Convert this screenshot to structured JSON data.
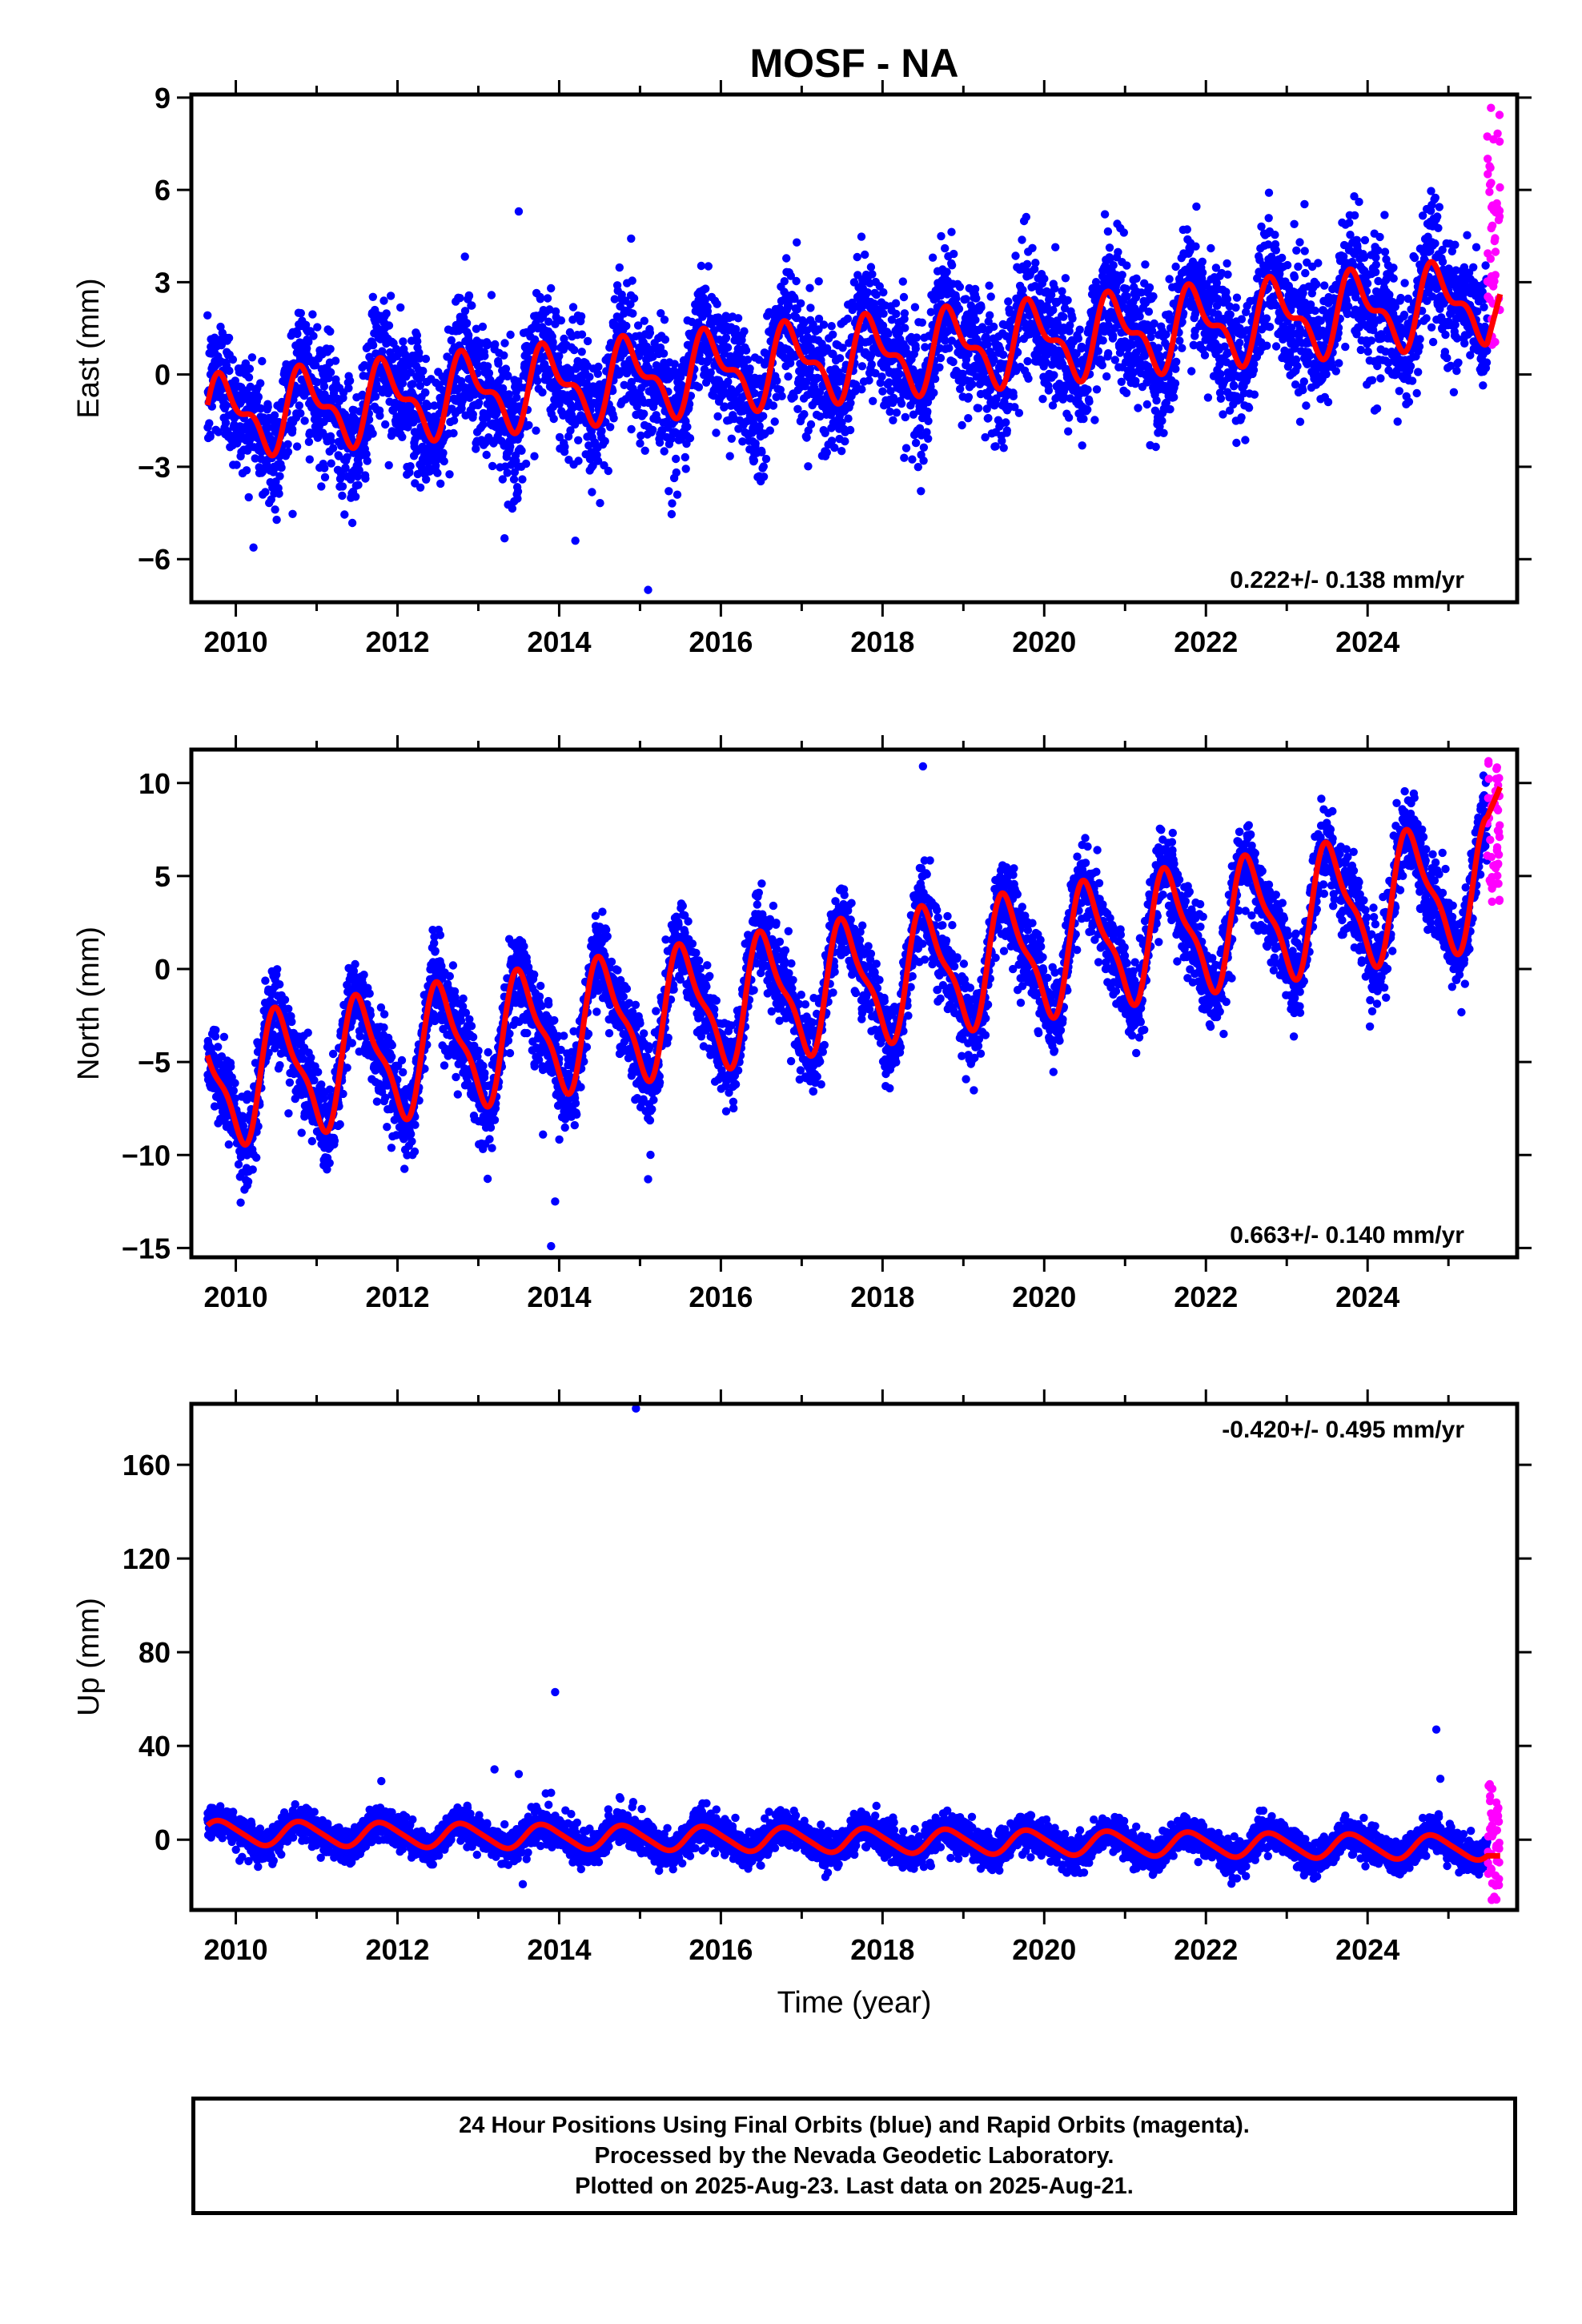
{
  "chart_data": [
    {
      "type": "scatter",
      "title": "MOSF - NA",
      "ylabel": "East (mm)",
      "xlabel": "",
      "xlim": [
        2009.45,
        2025.85
      ],
      "ylim": [
        -7.4,
        9.1
      ],
      "xticks": [
        2010,
        2012,
        2014,
        2016,
        2018,
        2020,
        2022,
        2024
      ],
      "yticks": [
        -6,
        -3,
        0,
        3,
        6,
        9
      ],
      "rate_label": "0.222+/- 0.138 mm/yr",
      "rate_position": "bottom-right",
      "series": [
        {
          "orbit": "final",
          "color": "#0000ff",
          "start": 2009.65,
          "end": 2025.48,
          "trend_start": -1.4,
          "trend_end": 2.4,
          "annual_amp": 1.1,
          "annual_phase": 2009.62,
          "semiannual_amp": 0.55,
          "noise_sd": 1.05,
          "num_points": 5400
        },
        {
          "orbit": "rapid",
          "color": "#ff00ff",
          "start": 2025.48,
          "end": 2025.64,
          "y_range": [
            0.5,
            8.7
          ],
          "num_points": 45
        }
      ],
      "model_curve": {
        "color": "#ff0000",
        "description": "fitted trend + seasonal model"
      },
      "outliers": [
        [
          2013.5,
          5.3
        ],
        [
          2015.1,
          -7.0
        ],
        [
          2014.2,
          -5.4
        ]
      ]
    },
    {
      "type": "scatter",
      "ylabel": "North (mm)",
      "xlabel": "",
      "xlim": [
        2009.45,
        2025.85
      ],
      "ylim": [
        -15.5,
        11.8
      ],
      "xticks": [
        2010,
        2012,
        2014,
        2016,
        2018,
        2020,
        2022,
        2024
      ],
      "yticks": [
        -15,
        -10,
        -5,
        0,
        5,
        10
      ],
      "rate_label": "0.663+/- 0.140 mm/yr",
      "rate_position": "bottom-right",
      "series": [
        {
          "orbit": "final",
          "color": "#0000ff",
          "start": 2009.65,
          "end": 2025.48,
          "trend_start": -6.2,
          "trend_end": 4.6,
          "annual_amp": 3.1,
          "annual_phase": 2009.3,
          "semiannual_amp": 1.0,
          "noise_sd": 1.1,
          "num_points": 5400
        },
        {
          "orbit": "rapid",
          "color": "#ff00ff",
          "start": 2025.48,
          "end": 2025.64,
          "y_range": [
            3.5,
            11.2
          ],
          "num_points": 45
        }
      ],
      "model_curve": {
        "color": "#ff0000",
        "description": "fitted trend + seasonal model"
      },
      "outliers": [
        [
          2013.9,
          -14.9
        ],
        [
          2013.95,
          -12.5
        ],
        [
          2015.1,
          -11.3
        ],
        [
          2013.8,
          -8.9
        ],
        [
          2018.5,
          10.9
        ]
      ]
    },
    {
      "type": "scatter",
      "ylabel": "Up (mm)",
      "xlabel": "Time (year)",
      "xlim": [
        2009.45,
        2025.85
      ],
      "ylim": [
        -30,
        186
      ],
      "xticks": [
        2010,
        2012,
        2014,
        2016,
        2018,
        2020,
        2022,
        2024
      ],
      "yticks": [
        0,
        40,
        80,
        120,
        160
      ],
      "rate_label": "-0.420+/- 0.495 mm/yr",
      "rate_position": "top-right",
      "series": [
        {
          "orbit": "final",
          "color": "#0000ff",
          "start": 2009.65,
          "end": 2025.48,
          "trend_start": 3.0,
          "trend_end": -3.5,
          "annual_amp": 5.0,
          "annual_phase": 2009.57,
          "semiannual_amp": 0.8,
          "noise_sd": 3.6,
          "num_points": 5400
        },
        {
          "orbit": "rapid",
          "color": "#ff00ff",
          "start": 2025.48,
          "end": 2025.64,
          "y_range": [
            -27,
            25
          ],
          "num_points": 45
        }
      ],
      "model_curve": {
        "color": "#ff0000",
        "description": "fitted trend + seasonal model"
      },
      "outliers": [
        [
          2014.95,
          184
        ],
        [
          2013.95,
          63
        ],
        [
          2024.85,
          47
        ],
        [
          2024.9,
          26
        ],
        [
          2013.2,
          30
        ],
        [
          2013.5,
          28
        ],
        [
          2013.9,
          20
        ],
        [
          2011.8,
          25
        ],
        [
          2013.55,
          -19
        ]
      ]
    }
  ],
  "footer": {
    "line1": "24 Hour Positions Using Final Orbits (blue) and Rapid Orbits (magenta).",
    "line2": "Processed by the Nevada Geodetic Laboratory.",
    "line3": "Plotted on 2025-Aug-23. Last data on 2025-Aug-21."
  }
}
